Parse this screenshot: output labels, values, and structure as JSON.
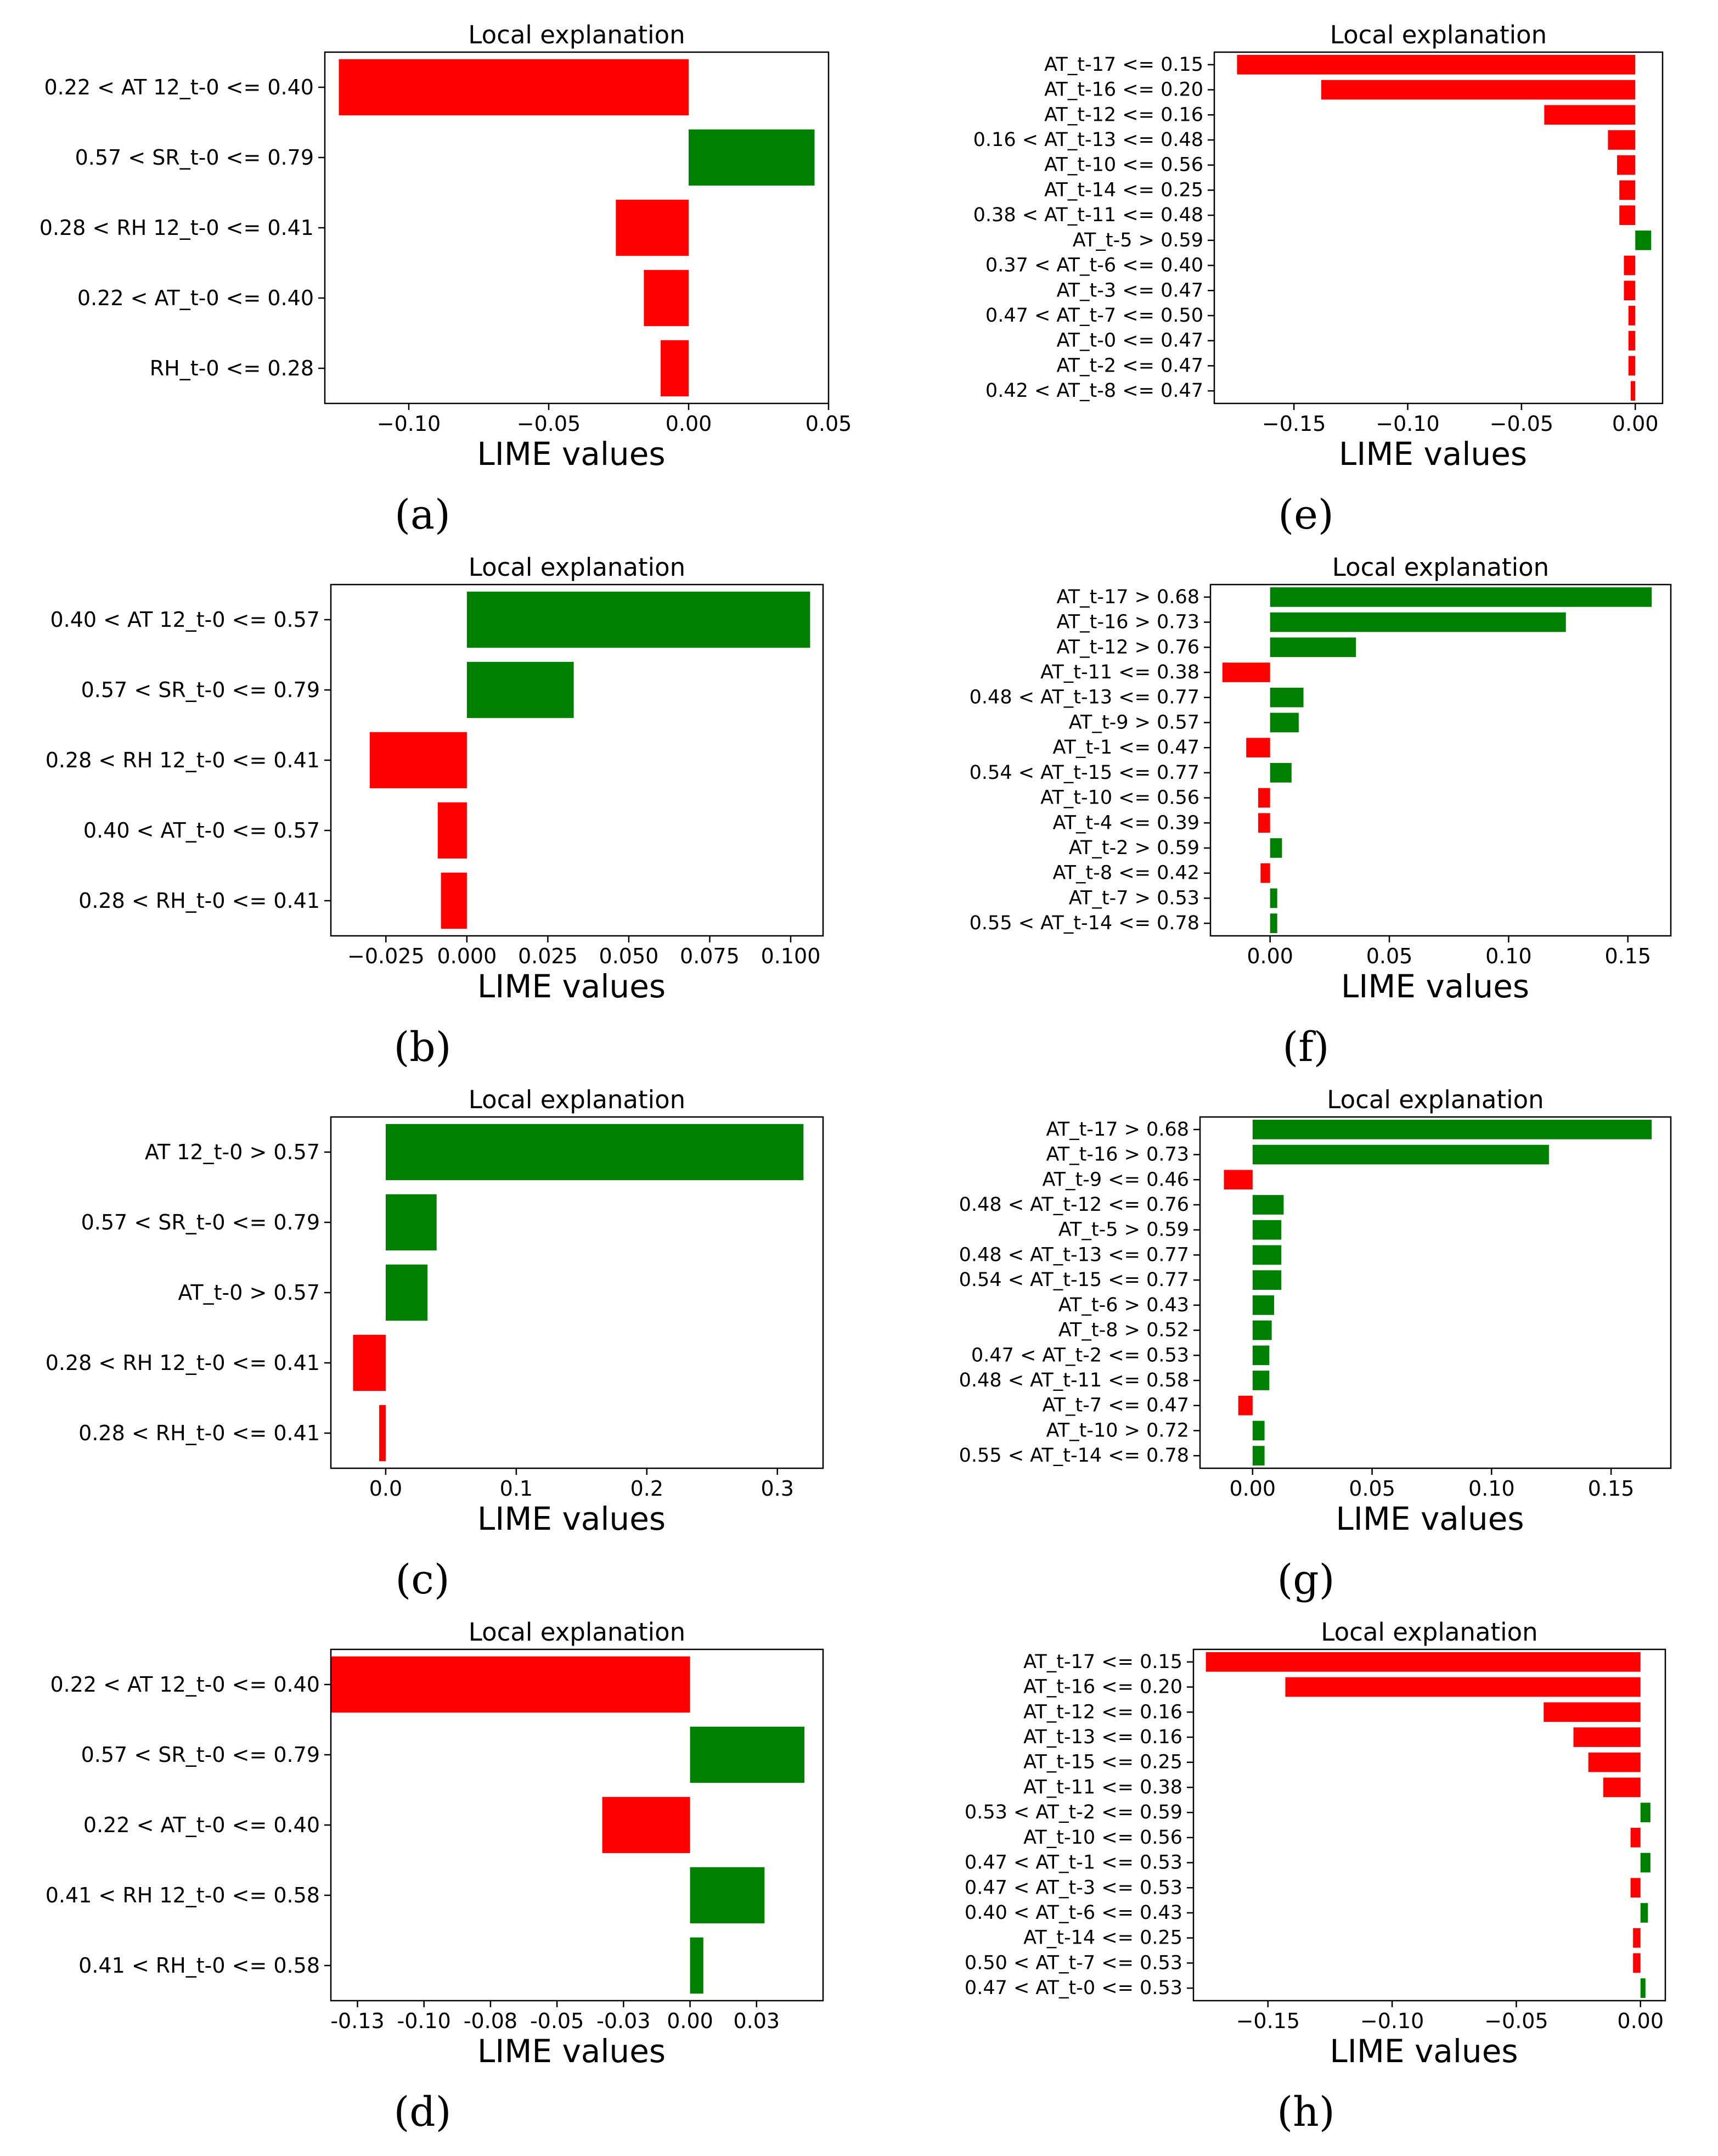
{
  "chart_data": [
    {
      "panel": "a",
      "type": "bar",
      "orientation": "horizontal",
      "title": "Local explanation",
      "xlabel": "LIME values",
      "xlim": [
        -0.13,
        0.05
      ],
      "xticks": [
        -0.1,
        -0.05,
        0.0,
        0.05
      ],
      "xtick_labels": [
        "−0.10",
        "−0.05",
        "0.00",
        "0.05"
      ],
      "categories": [
        "0.22 < AT 12_t-0 <= 0.40",
        "0.57 < SR_t-0 <= 0.79",
        "0.28 < RH 12_t-0 <= 0.41",
        "0.22 < AT_t-0 <= 0.40",
        "RH_t-0 <= 0.28"
      ],
      "values": [
        -0.125,
        0.045,
        -0.026,
        -0.016,
        -0.01
      ],
      "colors": {
        "positive": "#008000",
        "negative": "#ff0000"
      }
    },
    {
      "panel": "b",
      "type": "bar",
      "orientation": "horizontal",
      "title": "Local explanation",
      "xlabel": "LIME values",
      "xlim": [
        -0.042,
        0.11
      ],
      "xticks": [
        -0.025,
        0.0,
        0.025,
        0.05,
        0.075,
        0.1
      ],
      "xtick_labels": [
        "−0.025",
        "0.000",
        "0.025",
        "0.050",
        "0.075",
        "0.100"
      ],
      "categories": [
        "0.40 < AT 12_t-0 <= 0.57",
        "0.57 < SR_t-0 <= 0.79",
        "0.28 < RH 12_t-0 <= 0.41",
        "0.40 < AT_t-0 <= 0.57",
        "0.28 < RH_t-0 <= 0.41"
      ],
      "values": [
        0.106,
        0.033,
        -0.03,
        -0.009,
        -0.008
      ],
      "colors": {
        "positive": "#008000",
        "negative": "#ff0000"
      }
    },
    {
      "panel": "c",
      "type": "bar",
      "orientation": "horizontal",
      "title": "Local explanation",
      "xlabel": "LIME values",
      "xlim": [
        -0.042,
        0.335
      ],
      "xticks": [
        0.0,
        0.1,
        0.2,
        0.3
      ],
      "xtick_labels": [
        "0.0",
        "0.1",
        "0.2",
        "0.3"
      ],
      "categories": [
        "AT 12_t-0 > 0.57",
        "0.57 < SR_t-0 <= 0.79",
        "AT_t-0 > 0.57",
        "0.28 < RH 12_t-0 <= 0.41",
        "0.28 < RH_t-0 <= 0.41"
      ],
      "values": [
        0.32,
        0.039,
        0.032,
        -0.025,
        -0.005
      ],
      "colors": {
        "positive": "#008000",
        "negative": "#ff0000"
      }
    },
    {
      "panel": "d",
      "type": "bar",
      "orientation": "horizontal",
      "title": "Local explanation",
      "xlabel": "LIME values",
      "xlim": [
        -0.135,
        0.05
      ],
      "xticks": [
        -0.125,
        -0.1,
        -0.075,
        -0.05,
        -0.025,
        0.0,
        0.025
      ],
      "xtick_labels": [
        "-0.13",
        "-0.10",
        "-0.08",
        "-0.05",
        "-0.03",
        "0.00",
        "0.03"
      ],
      "categories": [
        "0.22 < AT 12_t-0 <= 0.40",
        "0.57 < SR_t-0 <= 0.79",
        "0.22 < AT_t-0 <= 0.40",
        "0.41 < RH 12_t-0 <= 0.58",
        "0.41 < RH_t-0 <= 0.58"
      ],
      "values": [
        -0.135,
        0.043,
        -0.033,
        0.028,
        0.005
      ],
      "colors": {
        "positive": "#008000",
        "negative": "#ff0000"
      }
    },
    {
      "panel": "e",
      "type": "bar",
      "orientation": "horizontal",
      "title": "Local explanation",
      "xlabel": "LIME values",
      "xlim": [
        -0.185,
        0.012
      ],
      "xticks": [
        -0.15,
        -0.1,
        -0.05,
        0.0
      ],
      "xtick_labels": [
        "−0.15",
        "−0.10",
        "−0.05",
        "0.00"
      ],
      "categories": [
        "AT_t-17 <= 0.15",
        "AT_t-16 <= 0.20",
        "AT_t-12 <= 0.16",
        "0.16 < AT_t-13 <= 0.48",
        "AT_t-10 <= 0.56",
        "AT_t-14 <= 0.25",
        "0.38 < AT_t-11 <= 0.48",
        "AT_t-5 > 0.59",
        "0.37 < AT_t-6 <= 0.40",
        "AT_t-3 <= 0.47",
        "0.47 < AT_t-7 <= 0.50",
        "AT_t-0 <= 0.47",
        "AT_t-2 <= 0.47",
        "0.42 < AT_t-8 <= 0.47"
      ],
      "values": [
        -0.175,
        -0.138,
        -0.04,
        -0.012,
        -0.008,
        -0.007,
        -0.007,
        0.007,
        -0.005,
        -0.005,
        -0.003,
        -0.003,
        -0.003,
        -0.002
      ],
      "colors": {
        "positive": "#008000",
        "negative": "#ff0000"
      }
    },
    {
      "panel": "f",
      "type": "bar",
      "orientation": "horizontal",
      "title": "Local explanation",
      "xlabel": "LIME values",
      "xlim": [
        -0.025,
        0.168
      ],
      "xticks": [
        0.0,
        0.05,
        0.1,
        0.15
      ],
      "xtick_labels": [
        "0.00",
        "0.05",
        "0.10",
        "0.15"
      ],
      "categories": [
        "AT_t-17 > 0.68",
        "AT_t-16 > 0.73",
        "AT_t-12 > 0.76",
        "AT_t-11 <= 0.38",
        "0.48 < AT_t-13 <= 0.77",
        "AT_t-9 > 0.57",
        "AT_t-1 <= 0.47",
        "0.54 < AT_t-15 <= 0.77",
        "AT_t-10 <= 0.56",
        "AT_t-4 <= 0.39",
        "AT_t-2 > 0.59",
        "AT_t-8 <= 0.42",
        "AT_t-7 > 0.53",
        "0.55 < AT_t-14 <= 0.78"
      ],
      "values": [
        0.16,
        0.124,
        0.036,
        -0.02,
        0.014,
        0.012,
        -0.01,
        0.009,
        -0.005,
        -0.005,
        0.005,
        -0.004,
        0.003,
        0.003
      ],
      "colors": {
        "positive": "#008000",
        "negative": "#ff0000"
      }
    },
    {
      "panel": "g",
      "type": "bar",
      "orientation": "horizontal",
      "title": "Local explanation",
      "xlabel": "LIME values",
      "xlim": [
        -0.022,
        0.175
      ],
      "xticks": [
        0.0,
        0.05,
        0.1,
        0.15
      ],
      "xtick_labels": [
        "0.00",
        "0.05",
        "0.10",
        "0.15"
      ],
      "categories": [
        "AT_t-17 > 0.68",
        "AT_t-16 > 0.73",
        "AT_t-9 <= 0.46",
        "0.48 < AT_t-12 <= 0.76",
        "AT_t-5 > 0.59",
        "0.48 < AT_t-13 <= 0.77",
        "0.54 < AT_t-15 <= 0.77",
        "AT_t-6 > 0.43",
        "AT_t-8 > 0.52",
        "0.47 < AT_t-2 <= 0.53",
        "0.48 < AT_t-11 <= 0.58",
        "AT_t-7 <= 0.47",
        "AT_t-10 > 0.72",
        "0.55 < AT_t-14 <= 0.78"
      ],
      "values": [
        0.167,
        0.124,
        -0.012,
        0.013,
        0.012,
        0.012,
        0.012,
        0.009,
        0.008,
        0.007,
        0.007,
        -0.006,
        0.005,
        0.005
      ],
      "colors": {
        "positive": "#008000",
        "negative": "#ff0000"
      }
    },
    {
      "panel": "h",
      "type": "bar",
      "orientation": "horizontal",
      "title": "Local explanation",
      "xlabel": "LIME values",
      "xlim": [
        -0.18,
        0.01
      ],
      "xticks": [
        -0.15,
        -0.1,
        -0.05,
        0.0
      ],
      "xtick_labels": [
        "−0.15",
        "−0.10",
        "−0.05",
        "0.00"
      ],
      "categories": [
        "AT_t-17 <= 0.15",
        "AT_t-16 <= 0.20",
        "AT_t-12 <= 0.16",
        "AT_t-13 <= 0.16",
        "AT_t-15 <= 0.25",
        "AT_t-11 <= 0.38",
        "0.53 < AT_t-2 <= 0.59",
        "AT_t-10 <= 0.56",
        "0.47 < AT_t-1 <= 0.53",
        "0.47 < AT_t-3 <= 0.53",
        "0.40 < AT_t-6 <= 0.43",
        "AT_t-14 <= 0.25",
        "0.50 < AT_t-7 <= 0.53",
        "0.47 < AT_t-0 <= 0.53"
      ],
      "values": [
        -0.175,
        -0.143,
        -0.039,
        -0.027,
        -0.021,
        -0.015,
        0.004,
        -0.004,
        0.004,
        -0.004,
        0.003,
        -0.003,
        -0.003,
        0.002
      ],
      "colors": {
        "positive": "#008000",
        "negative": "#ff0000"
      }
    }
  ],
  "subfigure_labels": [
    "(a)",
    "(b)",
    "(c)",
    "(d)",
    "(e)",
    "(f)",
    "(g)",
    "(h)"
  ]
}
